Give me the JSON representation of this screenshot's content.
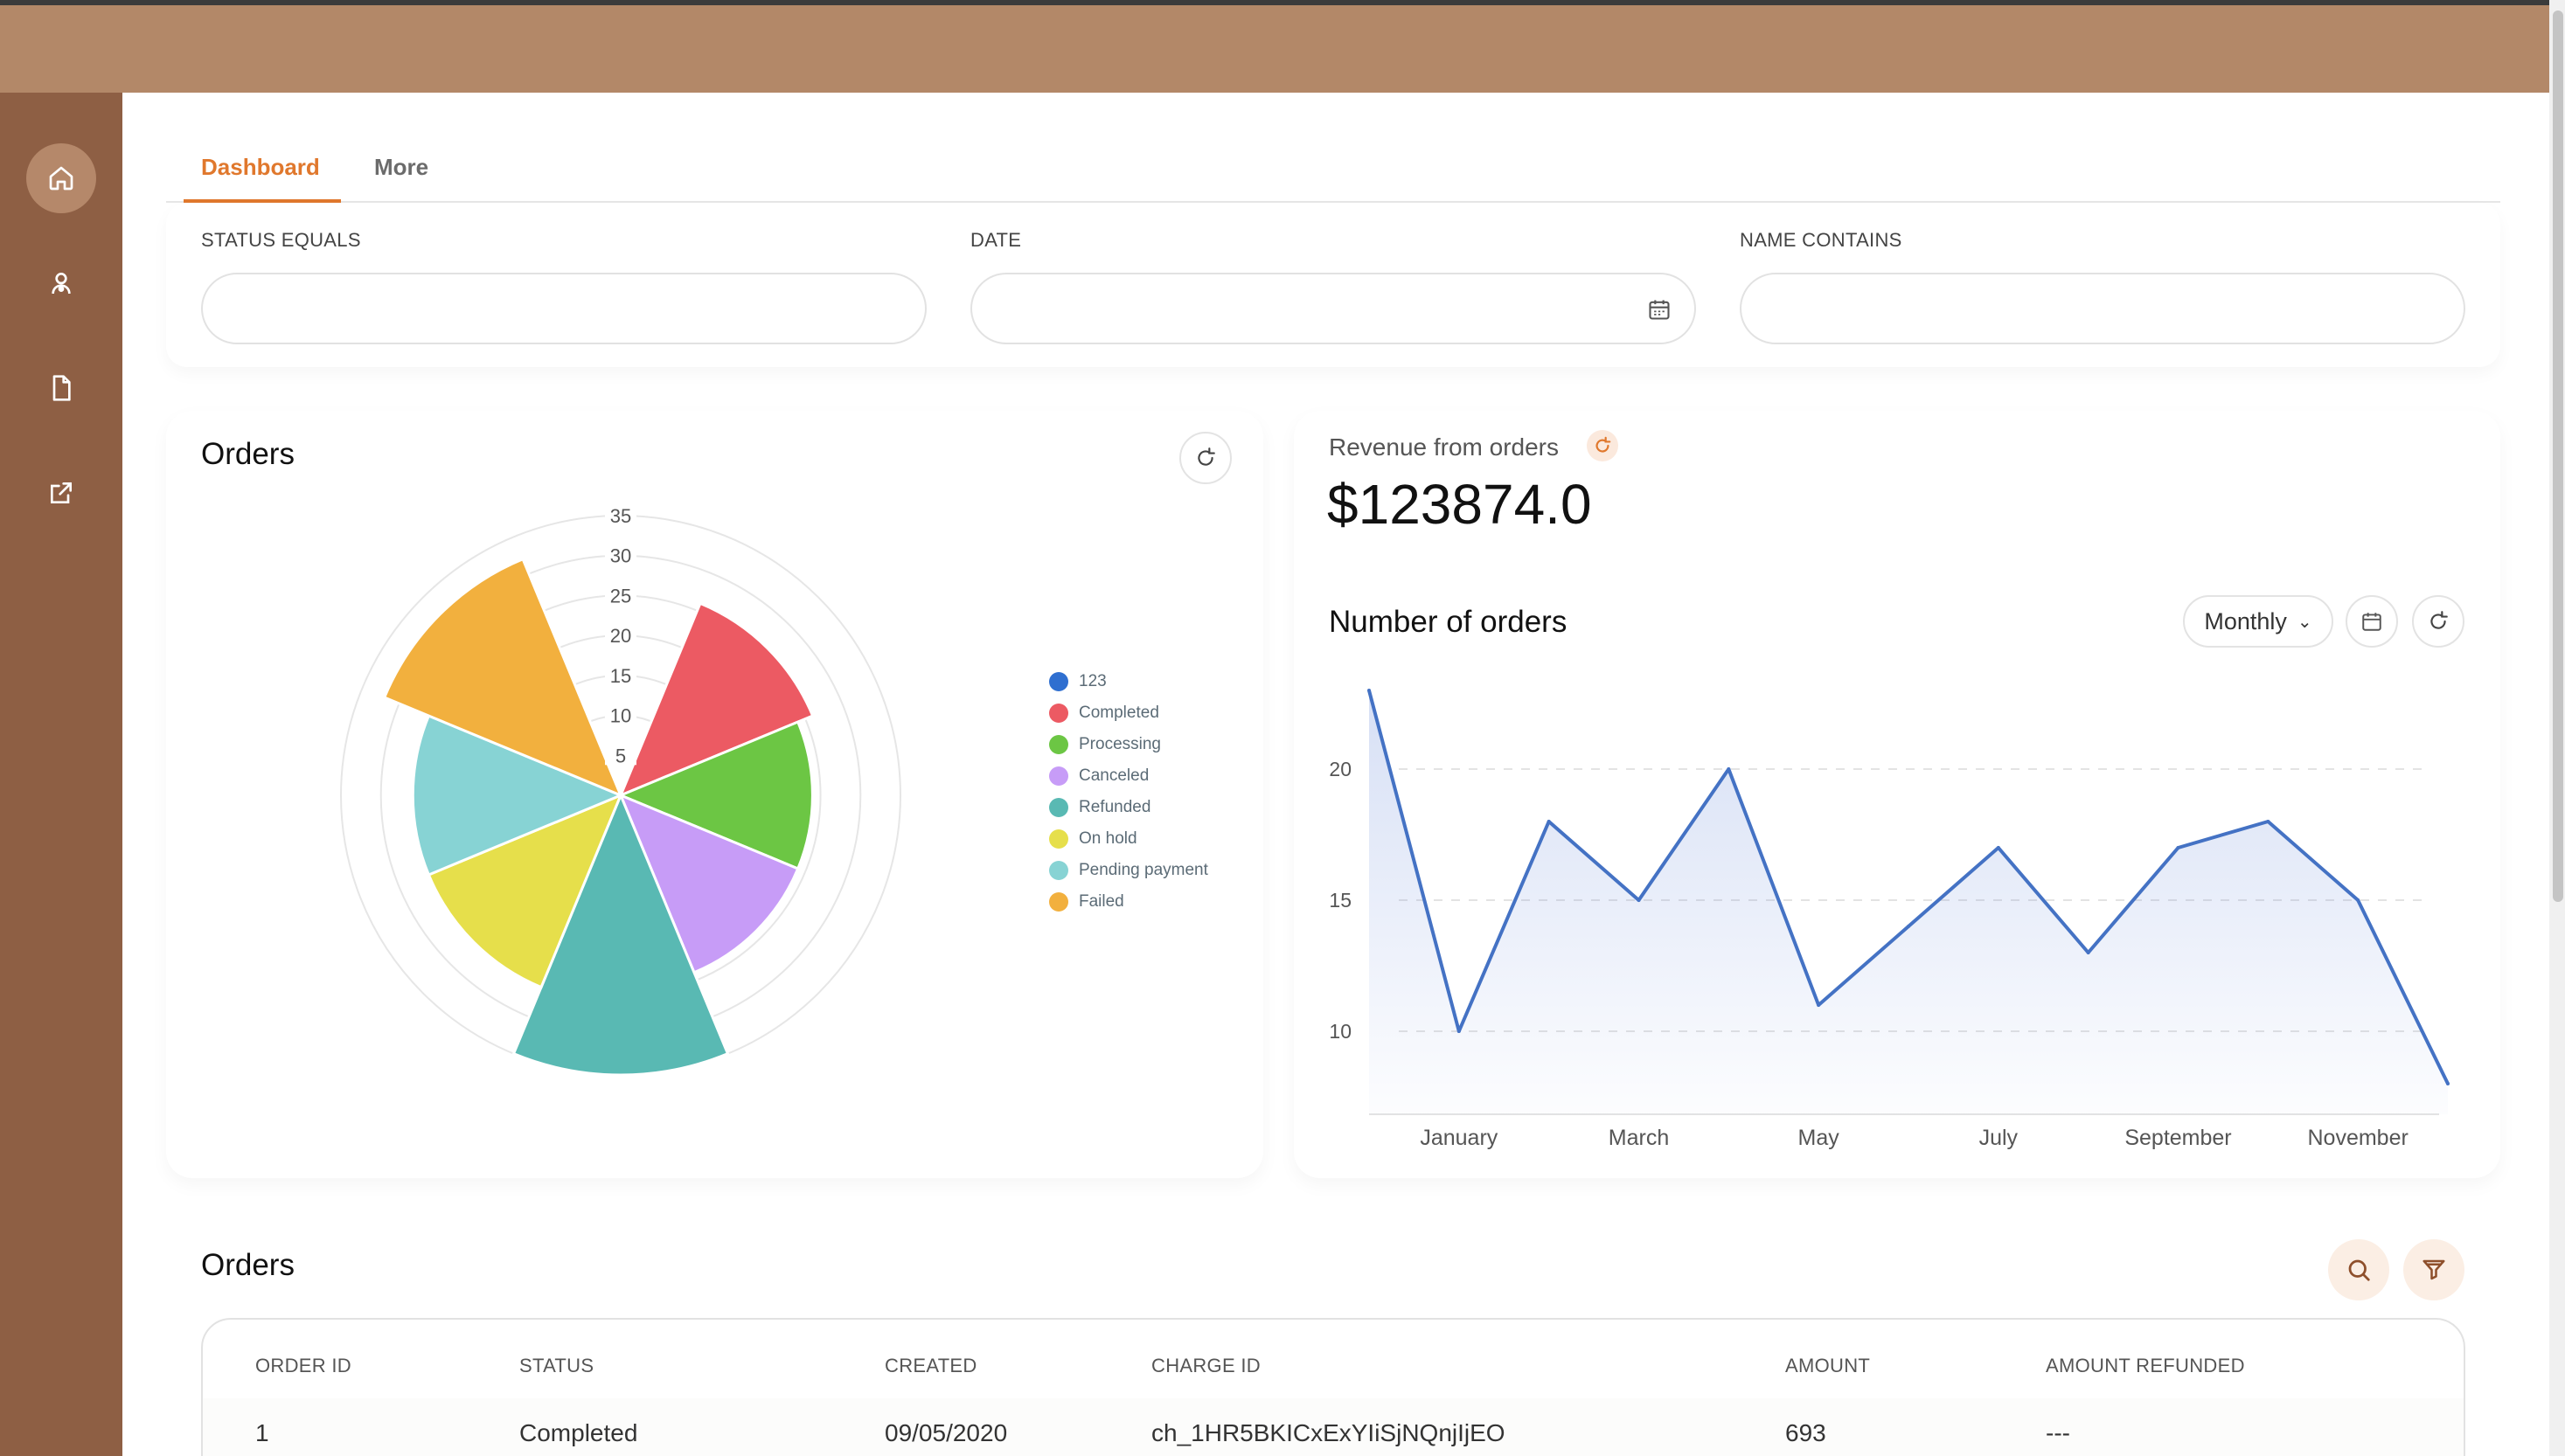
{
  "tabs": {
    "dashboard": "Dashboard",
    "more": "More"
  },
  "filters": {
    "status": "STATUS EQUALS",
    "date": "DATE",
    "name": "NAME CONTAINS"
  },
  "orders_card": {
    "title": "Orders"
  },
  "revenue": {
    "label": "Revenue from orders",
    "value": "$123874.0"
  },
  "orders_line": {
    "title": "Number of orders",
    "period": "Monthly"
  },
  "sidebar": {
    "icons": [
      "home-icon",
      "user-icon",
      "document-icon",
      "external-link-icon"
    ]
  },
  "colors": {
    "accent": "#e0782d",
    "topbar": "#b38868",
    "sidebar": "#8e5f44",
    "line": "#4472c4"
  },
  "chart_data": [
    {
      "type": "polar-area",
      "title": "Orders",
      "r_ticks": [
        "5",
        "10",
        "15",
        "20",
        "25",
        "30",
        "35"
      ],
      "rmax": 35,
      "legend_position": "right",
      "series": [
        {
          "name": "123",
          "value": 0,
          "color": "#2f6fd0"
        },
        {
          "name": "Completed",
          "value": 26,
          "color": "#ec5a63"
        },
        {
          "name": "Processing",
          "value": 24,
          "color": "#6cc644"
        },
        {
          "name": "Canceled",
          "value": 24,
          "color": "#c79cf7"
        },
        {
          "name": "Refunded",
          "value": 35,
          "color": "#59b9b3"
        },
        {
          "name": "On hold",
          "value": 26,
          "color": "#e6df4b"
        },
        {
          "name": "Pending payment",
          "value": 26,
          "color": "#87d3d4"
        },
        {
          "name": "Failed",
          "value": 32,
          "color": "#f2b03e"
        }
      ]
    },
    {
      "type": "area",
      "title": "Number of orders",
      "x_tick_labels": [
        "January",
        "March",
        "May",
        "July",
        "September",
        "November"
      ],
      "y_tick_labels": [
        "10",
        "15",
        "20"
      ],
      "ylim": [
        7,
        23
      ],
      "grid": true,
      "x": [
        "",
        "January",
        "",
        "March",
        "",
        "May",
        "",
        "July",
        "",
        "September",
        "",
        "November",
        ""
      ],
      "values": [
        23,
        10,
        18,
        15,
        20,
        11,
        14,
        17,
        13,
        17,
        18,
        15,
        8
      ]
    }
  ],
  "table": {
    "title": "Orders",
    "columns": [
      "ORDER ID",
      "STATUS",
      "CREATED",
      "CHARGE ID",
      "AMOUNT",
      "AMOUNT REFUNDED"
    ],
    "rows": [
      [
        "1",
        "Completed",
        "09/05/2020",
        "ch_1HR5BKICxExYIiSjNQnjIjEO",
        "693",
        "---"
      ]
    ]
  }
}
